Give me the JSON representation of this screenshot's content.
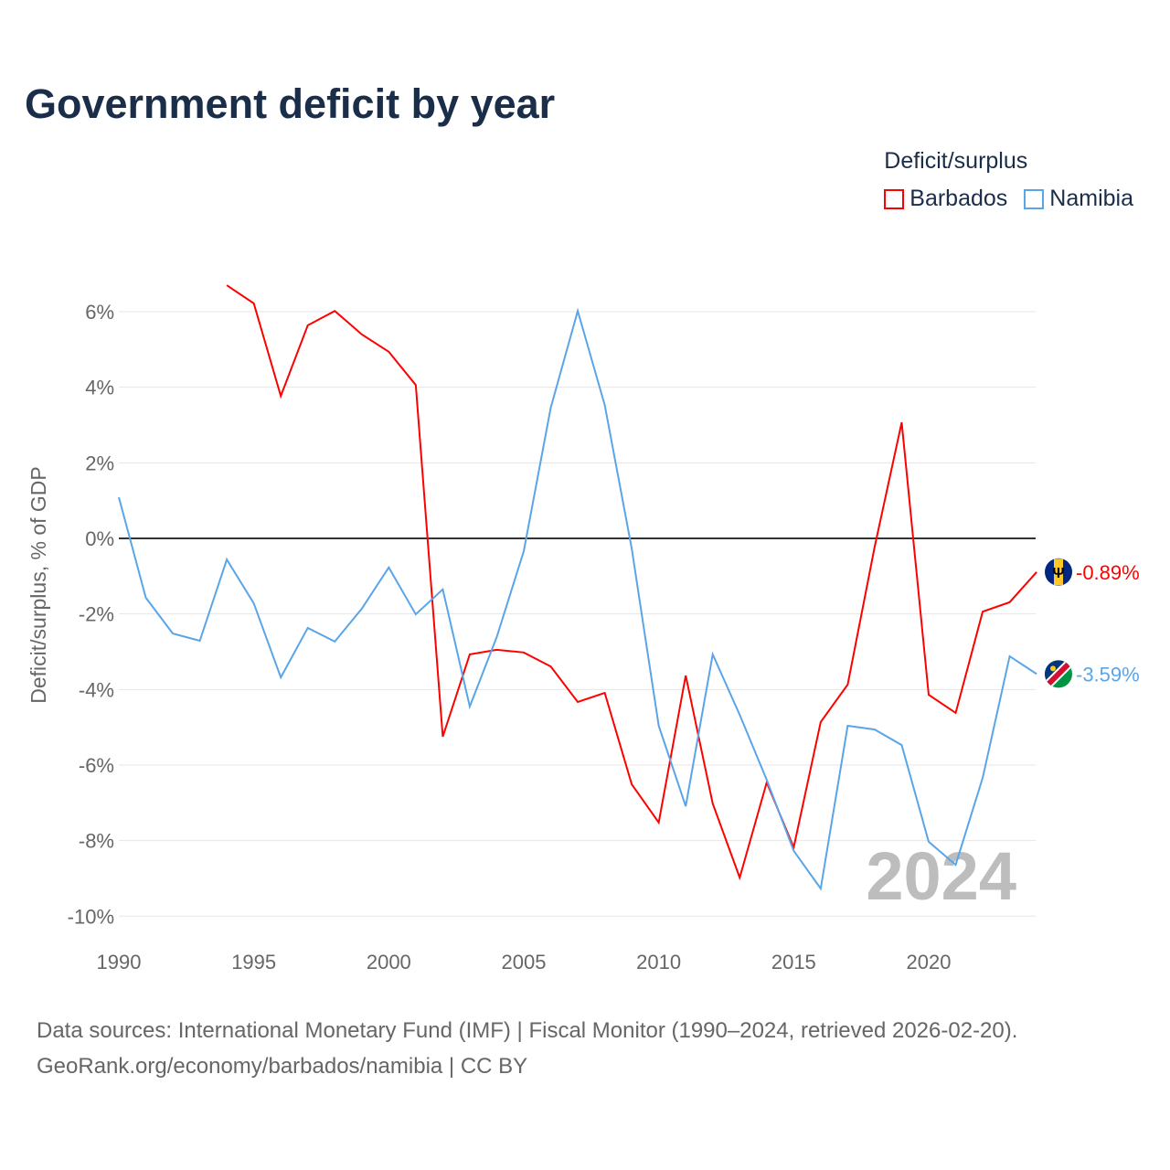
{
  "chart_data": {
    "type": "line",
    "title": "Government deficit by year",
    "ylabel": "Deficit/surplus, % of GDP",
    "xlabel": "",
    "xlim": [
      1990,
      2024
    ],
    "ylim": [
      -10,
      7
    ],
    "x_ticks": [
      "1990",
      "1995",
      "2000",
      "2005",
      "2010",
      "2015",
      "2020"
    ],
    "y_ticks": [
      "6%",
      "4%",
      "2%",
      "0%",
      "-2%",
      "-4%",
      "-6%",
      "-8%",
      "-10%"
    ],
    "grid": true,
    "legend_title": "Deficit/surplus",
    "legend_position": "top-right",
    "year_watermark": "2024",
    "series": [
      {
        "name": "Barbados",
        "color": "#ff0000",
        "end_label": "-0.89%",
        "flag": "barbados-flag",
        "x": [
          1994,
          1995,
          1996,
          1997,
          1998,
          1999,
          2000,
          2001,
          2002,
          2003,
          2004,
          2005,
          2006,
          2007,
          2008,
          2009,
          2010,
          2011,
          2012,
          2013,
          2014,
          2015,
          2016,
          2017,
          2018,
          2019,
          2020,
          2021,
          2022,
          2023,
          2024
        ],
        "values": [
          6.7,
          6.22,
          3.77,
          5.64,
          6.02,
          5.4,
          4.94,
          4.06,
          -5.25,
          -3.07,
          -2.95,
          -3.02,
          -3.39,
          -4.33,
          -4.09,
          -6.51,
          -7.52,
          -3.63,
          -7.02,
          -8.98,
          -6.46,
          -8.18,
          -4.86,
          -3.87,
          -0.22,
          3.07,
          -4.14,
          -4.62,
          -1.94,
          -1.69,
          -0.89
        ]
      },
      {
        "name": "Namibia",
        "color": "#5aa5e8",
        "end_label": "-3.59%",
        "flag": "namibia-flag",
        "x": [
          1990,
          1991,
          1992,
          1993,
          1994,
          1995,
          1996,
          1997,
          1998,
          1999,
          2000,
          2001,
          2002,
          2003,
          2004,
          2005,
          2006,
          2007,
          2008,
          2009,
          2010,
          2011,
          2012,
          2013,
          2014,
          2015,
          2016,
          2017,
          2018,
          2019,
          2020,
          2021,
          2022,
          2023,
          2024
        ],
        "values": [
          1.09,
          -1.57,
          -2.52,
          -2.71,
          -0.56,
          -1.72,
          -3.68,
          -2.37,
          -2.73,
          -1.86,
          -0.77,
          -2.01,
          -1.35,
          -4.45,
          -2.61,
          -0.34,
          3.46,
          6.02,
          3.53,
          -0.27,
          -4.96,
          -7.09,
          -3.07,
          -4.67,
          -6.39,
          -8.27,
          -9.27,
          -4.96,
          -5.06,
          -5.47,
          -8.03,
          -8.64,
          -6.34,
          -3.12,
          -3.59
        ]
      }
    ]
  },
  "source": {
    "line1": "Data sources: International Monetary Fund (IMF) | Fiscal Monitor (1990–2024, retrieved 2026-02-20).",
    "line2": "GeoRank.org/economy/barbados/namibia | CC BY"
  }
}
